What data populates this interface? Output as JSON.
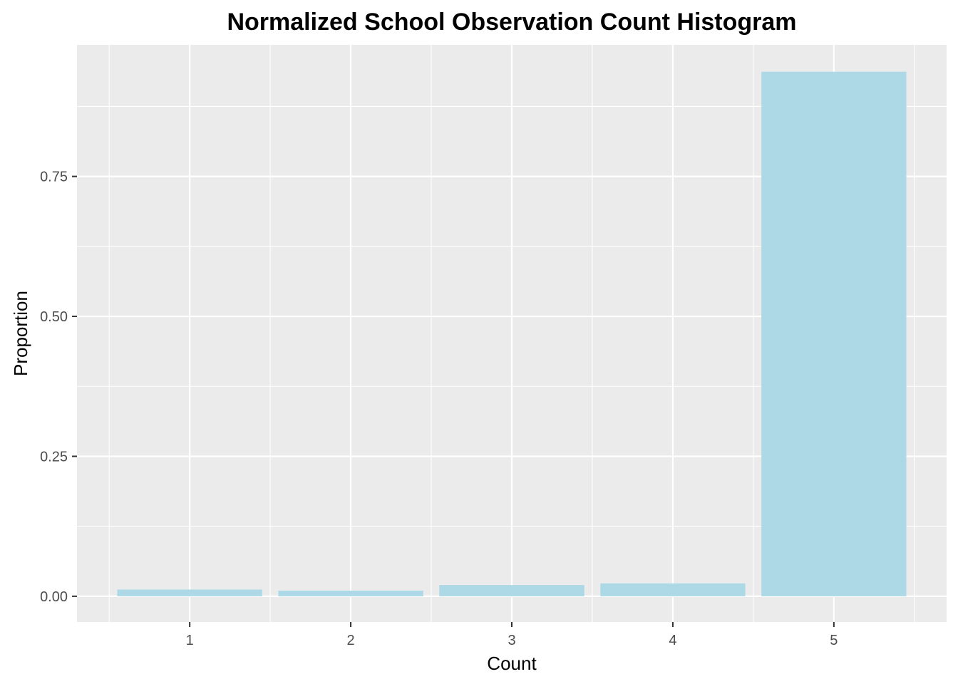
{
  "chart_data": {
    "type": "bar",
    "title": "Normalized School Observation Count Histogram",
    "xlabel": "Count",
    "ylabel": "Proportion",
    "categories": [
      "1",
      "2",
      "3",
      "4",
      "5"
    ],
    "values": [
      0.012,
      0.01,
      0.02,
      0.023,
      0.937
    ],
    "ylim": [
      -0.046,
      0.985
    ],
    "y_ticks": [
      0.0,
      0.25,
      0.5,
      0.75
    ],
    "y_tick_labels": [
      "0.00",
      "0.25",
      "0.50",
      "0.75"
    ],
    "grid": true,
    "legend": "none",
    "colors": {
      "bar_fill": "#ADD8E6",
      "panel_background": "#EBEBEB",
      "grid_major": "#FFFFFF",
      "tick_mark": "#333333",
      "tick_text": "#4D4D4D",
      "title_text": "#000000"
    }
  }
}
